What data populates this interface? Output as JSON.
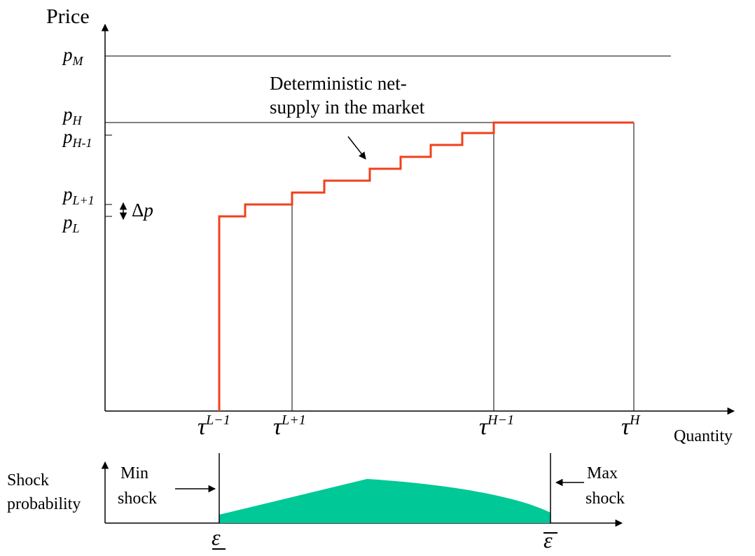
{
  "axes": {
    "y_label": "Price",
    "x_label": "Quantity"
  },
  "price_levels": {
    "pM": {
      "base": "p",
      "sub": "M"
    },
    "pH": {
      "base": "p",
      "sub": "H"
    },
    "pH1": {
      "base": "p",
      "sub": "H-1"
    },
    "pL1": {
      "base": "p",
      "sub": "L+1"
    },
    "pL": {
      "base": "p",
      "sub": "L"
    }
  },
  "delta": {
    "symbol": "Δ",
    "var": "p"
  },
  "quantity_levels": {
    "tL1m": {
      "base": "τ",
      "sup": "L−1"
    },
    "tL1p": {
      "base": "τ",
      "sup": "L+1"
    },
    "tH1m": {
      "base": "τ",
      "sup": "H−1"
    },
    "tH": {
      "base": "τ",
      "sup": "H"
    }
  },
  "annotation": {
    "line1": "Deterministic net-",
    "line2": "supply in the market"
  },
  "shock": {
    "y_label_line1": "Shock",
    "y_label_line2": "probability",
    "min_line1": "Min",
    "min_line2": "shock",
    "max_line1": "Max",
    "max_line2": "shock",
    "eps": "ε"
  },
  "colors": {
    "supply_curve": "#f0401c",
    "shock_fill": "#00c896",
    "axis": "#000000"
  }
}
